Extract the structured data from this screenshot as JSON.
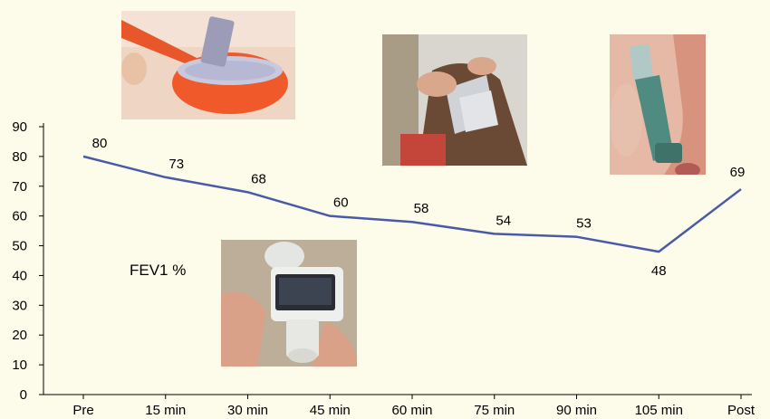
{
  "chart_data": {
    "type": "line",
    "categories": [
      "Pre",
      "15 min",
      "30 min",
      "45 min",
      "60 min",
      "75 min",
      "90 min",
      "105 min",
      "Post"
    ],
    "series": [
      {
        "values": [
          80,
          73,
          68,
          60,
          58,
          54,
          53,
          48,
          69
        ]
      }
    ],
    "data_labels": [
      "80",
      "73",
      "68",
      "60",
      "58",
      "54",
      "53",
      "48",
      "69"
    ],
    "annotation": "FEV1 %",
    "yticks": [
      "0",
      "10",
      "20",
      "30",
      "40",
      "50",
      "60",
      "70",
      "80",
      "90"
    ],
    "ylim": [
      0,
      90
    ],
    "grid": false,
    "legend": "none",
    "line_color": "#4a5aa8"
  },
  "photos": [
    {
      "icon": "hair-dye-bowl-photo"
    },
    {
      "icon": "hair-foil-application-photo"
    },
    {
      "icon": "asthma-inhaler-photo"
    },
    {
      "icon": "handheld-spirometer-photo"
    }
  ]
}
